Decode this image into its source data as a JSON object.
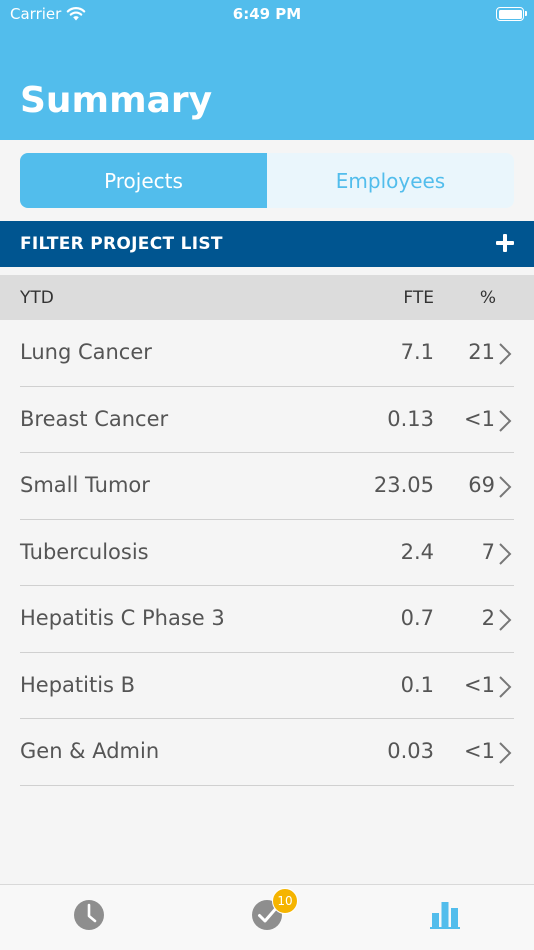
{
  "status": {
    "carrier": "Carrier",
    "time": "6:49 PM"
  },
  "header": {
    "title": "Summary"
  },
  "segments": {
    "projects": "Projects",
    "employees": "Employees"
  },
  "filter": {
    "label": "FILTER PROJECT LIST"
  },
  "table": {
    "headers": {
      "ytd": "YTD",
      "fte": "FTE",
      "pct": "%"
    },
    "rows": [
      {
        "name": "Lung Cancer",
        "fte": "7.1",
        "pct": "21"
      },
      {
        "name": "Breast Cancer",
        "fte": "0.13",
        "pct": "<1"
      },
      {
        "name": "Small Tumor",
        "fte": "23.05",
        "pct": "69"
      },
      {
        "name": "Tuberculosis",
        "fte": "2.4",
        "pct": "7"
      },
      {
        "name": "Hepatitis C Phase 3",
        "fte": "0.7",
        "pct": "2"
      },
      {
        "name": "Hepatitis B",
        "fte": "0.1",
        "pct": "<1"
      },
      {
        "name": "Gen & Admin",
        "fte": "0.03",
        "pct": "<1"
      }
    ]
  },
  "tabbar": {
    "badge": "10",
    "icons": [
      "clock-icon",
      "checkmark-circle-icon",
      "bar-chart-icon"
    ]
  },
  "colors": {
    "accent": "#52bdec",
    "filter_bar": "#005590",
    "badge": "#f5b400"
  }
}
